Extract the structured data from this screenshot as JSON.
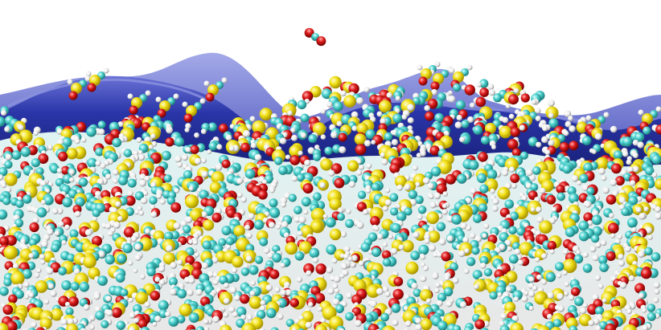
{
  "scene": {
    "subject": "molecular-dynamics-snapshot",
    "corner_mark": "'",
    "colors": {
      "background": "#ffffff",
      "interface_surface": "#1f2a8c",
      "interface_highlight": "#5a63c9",
      "carbon": "#4fd3d0",
      "hydrogen": "#f2f2f2",
      "oxygen": "#e01e1e",
      "sulfur": "#f2e21a"
    }
  }
}
